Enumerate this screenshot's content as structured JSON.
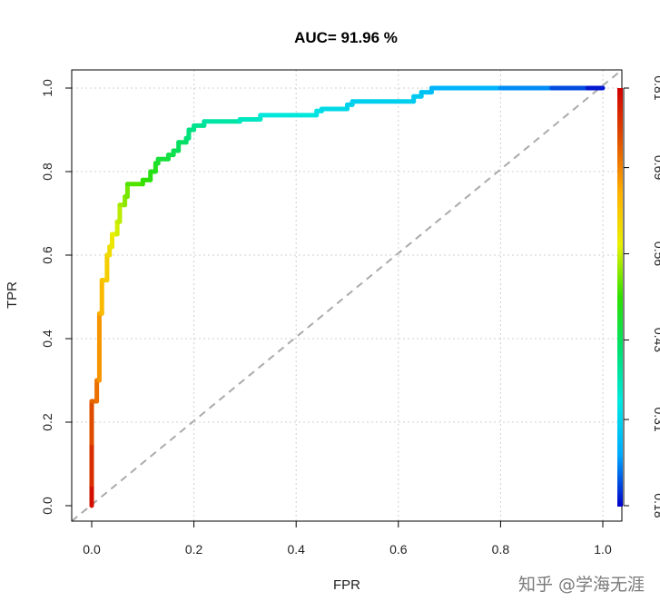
{
  "chart_data": {
    "type": "line",
    "title": "AUC= 91.96 %",
    "xlabel": "FPR",
    "ylabel": "TPR",
    "xlim": [
      0,
      1
    ],
    "ylim": [
      0,
      1
    ],
    "x_ticks": [
      "0.0",
      "0.2",
      "0.4",
      "0.6",
      "0.8",
      "1.0"
    ],
    "y_ticks": [
      "0.0",
      "0.2",
      "0.4",
      "0.6",
      "0.8",
      "1.0"
    ],
    "grid": true,
    "diagonal": true,
    "colorbar": {
      "min": 0.18,
      "max": 0.81,
      "ticks": [
        "0.18",
        "0.31",
        "0.43",
        "0.56",
        "0.69",
        "0.81"
      ],
      "colors": [
        "#0000c8",
        "#00aaff",
        "#00e8e0",
        "#00e070",
        "#2ee000",
        "#e8f000",
        "#ffb000",
        "#e05000",
        "#d00000"
      ]
    },
    "series": [
      {
        "points": [
          [
            0,
            0,
            0.81
          ],
          [
            0,
            0.05,
            0.78
          ],
          [
            0,
            0.15,
            0.75
          ],
          [
            0,
            0.25,
            0.72
          ],
          [
            0.01,
            0.25,
            0.71
          ],
          [
            0.01,
            0.3,
            0.7
          ],
          [
            0.015,
            0.3,
            0.69
          ],
          [
            0.015,
            0.46,
            0.66
          ],
          [
            0.02,
            0.46,
            0.65
          ],
          [
            0.02,
            0.54,
            0.63
          ],
          [
            0.03,
            0.54,
            0.62
          ],
          [
            0.03,
            0.6,
            0.61
          ],
          [
            0.035,
            0.6,
            0.6
          ],
          [
            0.035,
            0.62,
            0.6
          ],
          [
            0.04,
            0.62,
            0.59
          ],
          [
            0.04,
            0.65,
            0.58
          ],
          [
            0.05,
            0.65,
            0.57
          ],
          [
            0.05,
            0.68,
            0.56
          ],
          [
            0.055,
            0.68,
            0.56
          ],
          [
            0.055,
            0.72,
            0.55
          ],
          [
            0.065,
            0.72,
            0.54
          ],
          [
            0.065,
            0.74,
            0.53
          ],
          [
            0.07,
            0.74,
            0.53
          ],
          [
            0.07,
            0.77,
            0.52
          ],
          [
            0.1,
            0.77,
            0.5
          ],
          [
            0.1,
            0.78,
            0.5
          ],
          [
            0.115,
            0.78,
            0.49
          ],
          [
            0.115,
            0.8,
            0.48
          ],
          [
            0.125,
            0.8,
            0.48
          ],
          [
            0.125,
            0.82,
            0.47
          ],
          [
            0.13,
            0.82,
            0.47
          ],
          [
            0.13,
            0.83,
            0.46
          ],
          [
            0.15,
            0.83,
            0.45
          ],
          [
            0.15,
            0.84,
            0.45
          ],
          [
            0.16,
            0.84,
            0.44
          ],
          [
            0.16,
            0.85,
            0.44
          ],
          [
            0.17,
            0.85,
            0.43
          ],
          [
            0.17,
            0.87,
            0.43
          ],
          [
            0.185,
            0.87,
            0.42
          ],
          [
            0.185,
            0.88,
            0.42
          ],
          [
            0.19,
            0.88,
            0.41
          ],
          [
            0.19,
            0.9,
            0.41
          ],
          [
            0.2,
            0.9,
            0.4
          ],
          [
            0.2,
            0.91,
            0.4
          ],
          [
            0.22,
            0.91,
            0.39
          ],
          [
            0.22,
            0.92,
            0.39
          ],
          [
            0.29,
            0.92,
            0.37
          ],
          [
            0.29,
            0.925,
            0.36
          ],
          [
            0.33,
            0.925,
            0.36
          ],
          [
            0.33,
            0.935,
            0.35
          ],
          [
            0.44,
            0.935,
            0.33
          ],
          [
            0.44,
            0.945,
            0.33
          ],
          [
            0.45,
            0.945,
            0.33
          ],
          [
            0.45,
            0.95,
            0.32
          ],
          [
            0.5,
            0.95,
            0.32
          ],
          [
            0.5,
            0.96,
            0.31
          ],
          [
            0.51,
            0.96,
            0.31
          ],
          [
            0.51,
            0.968,
            0.31
          ],
          [
            0.63,
            0.968,
            0.3
          ],
          [
            0.63,
            0.98,
            0.3
          ],
          [
            0.645,
            0.98,
            0.3
          ],
          [
            0.645,
            0.99,
            0.29
          ],
          [
            0.665,
            0.99,
            0.29
          ],
          [
            0.665,
            1.0,
            0.28
          ],
          [
            0.8,
            1.0,
            0.26
          ],
          [
            0.9,
            1.0,
            0.23
          ],
          [
            0.97,
            1.0,
            0.2
          ],
          [
            1.0,
            1.0,
            0.18
          ]
        ]
      }
    ]
  },
  "watermark": "知乎 @学海无涯"
}
